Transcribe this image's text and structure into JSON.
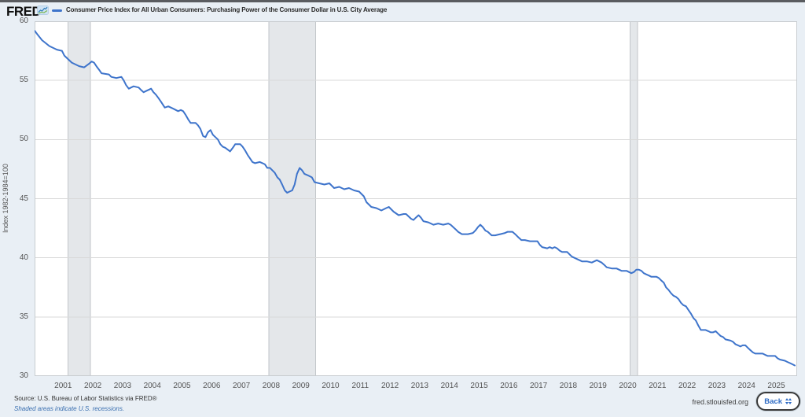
{
  "header": {
    "logo": "FRED",
    "title": "Consumer Price Index for All Urban Consumers: Purchasing Power of the Consumer Dollar in U.S. City Average"
  },
  "footer": {
    "source": "Source: U.S. Bureau of Labor Statistics via FRED®",
    "recession_note": "Shaded areas indicate U.S. recessions.",
    "site": "fred.stlouisfed.org",
    "back_label": "Back"
  },
  "icons": {
    "logo_chart_icon": "fred-sparkline-chart",
    "back_button_icon": "double-vertical-arrows"
  },
  "colors": {
    "page_bg": "#e9eff5",
    "top_strip": "#5a5c60",
    "plot_bg": "#ffffff",
    "plot_border": "#c8ccd0",
    "gridline": "#d9d9d9",
    "recession_fill": "#e4e7ea",
    "recession_edge": "#c2c6ca",
    "line": "#3e74cb",
    "tick_text": "#555555",
    "title_text": "#2b2b2b",
    "source_text": "#333333",
    "link_blue": "#3a6fb0"
  },
  "chart_data": {
    "type": "line",
    "title": "Consumer Price Index for All Urban Consumers: Purchasing Power of the Consumer Dollar in U.S. City Average",
    "xlabel": "",
    "ylabel": "Index 1982-1984=100",
    "ylim": [
      30,
      60
    ],
    "ytick_values": [
      60,
      55,
      50,
      45,
      40,
      35,
      30
    ],
    "xtick_years": [
      2001,
      2002,
      2003,
      2004,
      2005,
      2006,
      2007,
      2008,
      2009,
      2010,
      2011,
      2012,
      2013,
      2014,
      2015,
      2016,
      2017,
      2018,
      2019,
      2020,
      2021,
      2022,
      2023,
      2024,
      2025
    ],
    "x_range": [
      2000.04,
      2025.7
    ],
    "grid": "horizontal",
    "legend_position": "top-left",
    "line_color": "#3e74cb",
    "recessions": [
      [
        2001.17,
        2001.92
      ],
      [
        2007.92,
        2009.5
      ],
      [
        2020.08,
        2020.33
      ]
    ],
    "series": [
      {
        "name": "Consumer Price Index for All Urban Consumers: Purchasing Power of the Consumer Dollar in U.S. City Average",
        "color": "#3e74cb",
        "points": [
          [
            2000.04,
            59.2
          ],
          [
            2000.13,
            58.9
          ],
          [
            2000.29,
            58.4
          ],
          [
            2000.54,
            57.9
          ],
          [
            2000.79,
            57.6
          ],
          [
            2000.96,
            57.5
          ],
          [
            2001.04,
            57.1
          ],
          [
            2001.29,
            56.5
          ],
          [
            2001.54,
            56.2
          ],
          [
            2001.71,
            56.1
          ],
          [
            2001.87,
            56.4
          ],
          [
            2001.96,
            56.6
          ],
          [
            2002.04,
            56.5
          ],
          [
            2002.12,
            56.2
          ],
          [
            2002.21,
            55.9
          ],
          [
            2002.29,
            55.6
          ],
          [
            2002.54,
            55.5
          ],
          [
            2002.62,
            55.3
          ],
          [
            2002.79,
            55.2
          ],
          [
            2002.96,
            55.3
          ],
          [
            2003.04,
            55.0
          ],
          [
            2003.12,
            54.6
          ],
          [
            2003.21,
            54.3
          ],
          [
            2003.37,
            54.5
          ],
          [
            2003.54,
            54.4
          ],
          [
            2003.62,
            54.2
          ],
          [
            2003.71,
            54.0
          ],
          [
            2003.79,
            54.1
          ],
          [
            2003.96,
            54.3
          ],
          [
            2004.04,
            54.0
          ],
          [
            2004.12,
            53.8
          ],
          [
            2004.21,
            53.5
          ],
          [
            2004.29,
            53.2
          ],
          [
            2004.42,
            52.7
          ],
          [
            2004.54,
            52.8
          ],
          [
            2004.71,
            52.6
          ],
          [
            2004.87,
            52.4
          ],
          [
            2004.96,
            52.5
          ],
          [
            2005.04,
            52.4
          ],
          [
            2005.12,
            52.1
          ],
          [
            2005.21,
            51.7
          ],
          [
            2005.29,
            51.4
          ],
          [
            2005.46,
            51.4
          ],
          [
            2005.54,
            51.2
          ],
          [
            2005.62,
            50.9
          ],
          [
            2005.71,
            50.3
          ],
          [
            2005.79,
            50.2
          ],
          [
            2005.87,
            50.6
          ],
          [
            2005.96,
            50.8
          ],
          [
            2006.04,
            50.4
          ],
          [
            2006.21,
            50.0
          ],
          [
            2006.29,
            49.6
          ],
          [
            2006.37,
            49.4
          ],
          [
            2006.46,
            49.3
          ],
          [
            2006.62,
            49.0
          ],
          [
            2006.71,
            49.3
          ],
          [
            2006.79,
            49.6
          ],
          [
            2006.96,
            49.6
          ],
          [
            2007.04,
            49.4
          ],
          [
            2007.12,
            49.1
          ],
          [
            2007.21,
            48.7
          ],
          [
            2007.29,
            48.4
          ],
          [
            2007.37,
            48.1
          ],
          [
            2007.46,
            48.0
          ],
          [
            2007.62,
            48.1
          ],
          [
            2007.71,
            48.0
          ],
          [
            2007.79,
            47.9
          ],
          [
            2007.87,
            47.6
          ],
          [
            2007.96,
            47.6
          ],
          [
            2008.04,
            47.4
          ],
          [
            2008.12,
            47.2
          ],
          [
            2008.21,
            46.8
          ],
          [
            2008.29,
            46.6
          ],
          [
            2008.37,
            46.2
          ],
          [
            2008.46,
            45.7
          ],
          [
            2008.54,
            45.5
          ],
          [
            2008.62,
            45.6
          ],
          [
            2008.71,
            45.7
          ],
          [
            2008.79,
            46.2
          ],
          [
            2008.87,
            47.1
          ],
          [
            2008.96,
            47.6
          ],
          [
            2009.04,
            47.4
          ],
          [
            2009.12,
            47.1
          ],
          [
            2009.21,
            47.0
          ],
          [
            2009.29,
            46.9
          ],
          [
            2009.37,
            46.8
          ],
          [
            2009.46,
            46.4
          ],
          [
            2009.62,
            46.3
          ],
          [
            2009.79,
            46.2
          ],
          [
            2009.96,
            46.3
          ],
          [
            2010.04,
            46.1
          ],
          [
            2010.12,
            45.9
          ],
          [
            2010.29,
            46.0
          ],
          [
            2010.46,
            45.8
          ],
          [
            2010.62,
            45.9
          ],
          [
            2010.79,
            45.7
          ],
          [
            2010.96,
            45.6
          ],
          [
            2011.04,
            45.4
          ],
          [
            2011.12,
            45.2
          ],
          [
            2011.21,
            44.7
          ],
          [
            2011.29,
            44.5
          ],
          [
            2011.37,
            44.3
          ],
          [
            2011.54,
            44.2
          ],
          [
            2011.71,
            44.0
          ],
          [
            2011.87,
            44.2
          ],
          [
            2011.96,
            44.3
          ],
          [
            2012.04,
            44.1
          ],
          [
            2012.12,
            43.9
          ],
          [
            2012.29,
            43.6
          ],
          [
            2012.46,
            43.7
          ],
          [
            2012.54,
            43.7
          ],
          [
            2012.71,
            43.3
          ],
          [
            2012.79,
            43.2
          ],
          [
            2012.87,
            43.4
          ],
          [
            2012.96,
            43.6
          ],
          [
            2013.04,
            43.4
          ],
          [
            2013.12,
            43.1
          ],
          [
            2013.29,
            43.0
          ],
          [
            2013.46,
            42.8
          ],
          [
            2013.62,
            42.9
          ],
          [
            2013.79,
            42.8
          ],
          [
            2013.96,
            42.9
          ],
          [
            2014.04,
            42.8
          ],
          [
            2014.21,
            42.4
          ],
          [
            2014.29,
            42.2
          ],
          [
            2014.42,
            42.0
          ],
          [
            2014.62,
            42.0
          ],
          [
            2014.79,
            42.1
          ],
          [
            2014.87,
            42.3
          ],
          [
            2014.96,
            42.6
          ],
          [
            2015.04,
            42.8
          ],
          [
            2015.12,
            42.6
          ],
          [
            2015.21,
            42.3
          ],
          [
            2015.29,
            42.2
          ],
          [
            2015.42,
            41.9
          ],
          [
            2015.54,
            41.9
          ],
          [
            2015.71,
            42.0
          ],
          [
            2015.87,
            42.1
          ],
          [
            2015.96,
            42.2
          ],
          [
            2016.04,
            42.2
          ],
          [
            2016.12,
            42.2
          ],
          [
            2016.21,
            42.0
          ],
          [
            2016.29,
            41.8
          ],
          [
            2016.42,
            41.5
          ],
          [
            2016.54,
            41.5
          ],
          [
            2016.71,
            41.4
          ],
          [
            2016.96,
            41.4
          ],
          [
            2017.04,
            41.1
          ],
          [
            2017.12,
            40.9
          ],
          [
            2017.29,
            40.8
          ],
          [
            2017.37,
            40.9
          ],
          [
            2017.46,
            40.8
          ],
          [
            2017.54,
            40.9
          ],
          [
            2017.62,
            40.8
          ],
          [
            2017.71,
            40.6
          ],
          [
            2017.79,
            40.5
          ],
          [
            2017.96,
            40.5
          ],
          [
            2018.04,
            40.3
          ],
          [
            2018.12,
            40.1
          ],
          [
            2018.29,
            39.9
          ],
          [
            2018.46,
            39.7
          ],
          [
            2018.62,
            39.7
          ],
          [
            2018.79,
            39.6
          ],
          [
            2018.96,
            39.8
          ],
          [
            2019.04,
            39.7
          ],
          [
            2019.12,
            39.6
          ],
          [
            2019.21,
            39.4
          ],
          [
            2019.29,
            39.2
          ],
          [
            2019.46,
            39.1
          ],
          [
            2019.62,
            39.1
          ],
          [
            2019.79,
            38.9
          ],
          [
            2019.96,
            38.9
          ],
          [
            2020.04,
            38.8
          ],
          [
            2020.12,
            38.7
          ],
          [
            2020.21,
            38.8
          ],
          [
            2020.29,
            39.0
          ],
          [
            2020.37,
            39.0
          ],
          [
            2020.46,
            38.9
          ],
          [
            2020.54,
            38.7
          ],
          [
            2020.62,
            38.6
          ],
          [
            2020.71,
            38.5
          ],
          [
            2020.79,
            38.4
          ],
          [
            2020.96,
            38.4
          ],
          [
            2021.04,
            38.3
          ],
          [
            2021.12,
            38.1
          ],
          [
            2021.21,
            37.9
          ],
          [
            2021.29,
            37.5
          ],
          [
            2021.37,
            37.3
          ],
          [
            2021.46,
            37.0
          ],
          [
            2021.54,
            36.8
          ],
          [
            2021.62,
            36.7
          ],
          [
            2021.71,
            36.5
          ],
          [
            2021.79,
            36.2
          ],
          [
            2021.87,
            36.0
          ],
          [
            2021.96,
            35.9
          ],
          [
            2022.04,
            35.6
          ],
          [
            2022.12,
            35.3
          ],
          [
            2022.21,
            34.9
          ],
          [
            2022.29,
            34.7
          ],
          [
            2022.37,
            34.3
          ],
          [
            2022.46,
            33.9
          ],
          [
            2022.62,
            33.9
          ],
          [
            2022.71,
            33.8
          ],
          [
            2022.79,
            33.7
          ],
          [
            2022.87,
            33.7
          ],
          [
            2022.96,
            33.8
          ],
          [
            2023.04,
            33.6
          ],
          [
            2023.12,
            33.4
          ],
          [
            2023.21,
            33.3
          ],
          [
            2023.29,
            33.1
          ],
          [
            2023.46,
            33.0
          ],
          [
            2023.54,
            32.9
          ],
          [
            2023.62,
            32.7
          ],
          [
            2023.71,
            32.6
          ],
          [
            2023.79,
            32.5
          ],
          [
            2023.87,
            32.6
          ],
          [
            2023.96,
            32.6
          ],
          [
            2024.04,
            32.4
          ],
          [
            2024.12,
            32.2
          ],
          [
            2024.21,
            32.0
          ],
          [
            2024.29,
            31.9
          ],
          [
            2024.54,
            31.9
          ],
          [
            2024.62,
            31.8
          ],
          [
            2024.71,
            31.7
          ],
          [
            2024.96,
            31.7
          ],
          [
            2025.04,
            31.5
          ],
          [
            2025.12,
            31.4
          ],
          [
            2025.29,
            31.3
          ],
          [
            2025.37,
            31.2
          ],
          [
            2025.46,
            31.1
          ],
          [
            2025.54,
            31.0
          ],
          [
            2025.62,
            30.9
          ]
        ]
      }
    ]
  }
}
